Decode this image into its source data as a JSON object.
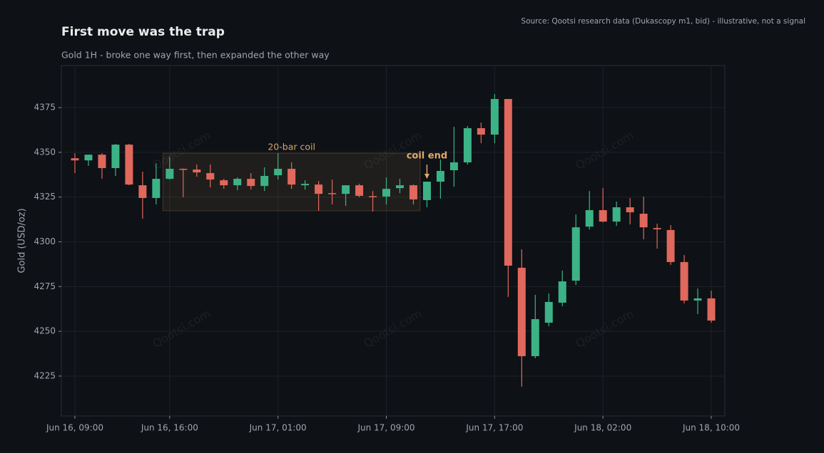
{
  "chart_data": {
    "type": "candlestick",
    "title": "First move was the trap",
    "subtitle": "Gold 1H - broke one way first, then expanded the other way",
    "source": "Source: Qootsi research data (Dukascopy m1, bid) - illustrative, not a signal",
    "watermark": "Qootsi.com",
    "y_label": "Gold (USD/oz)",
    "categories": [
      "Jun 16, 09:00",
      null,
      null,
      null,
      null,
      null,
      null,
      "Jun 16, 16:00",
      null,
      null,
      null,
      null,
      null,
      null,
      null,
      "Jun 17, 01:00",
      null,
      null,
      null,
      null,
      null,
      null,
      null,
      "Jun 17, 09:00",
      null,
      null,
      null,
      null,
      null,
      null,
      null,
      "Jun 17, 17:00",
      null,
      null,
      null,
      null,
      null,
      null,
      null,
      "Jun 18, 02:00",
      null,
      null,
      null,
      null,
      null,
      null,
      null,
      "Jun 18, 10:00"
    ],
    "open": [
      4346.7,
      4345.5,
      4348.7,
      4341.2,
      4354.3,
      4331.6,
      4324.5,
      4335.2,
      4340.8,
      4340.4,
      4338.4,
      4334.4,
      4331.6,
      4335.2,
      4331.2,
      4337.2,
      4340.8,
      4331.6,
      4332.0,
      4327.2,
      4326.8,
      4331.6,
      4325.5,
      4325.3,
      4330.0,
      4331.6,
      4323.3,
      4333.6,
      4340.0,
      4344.4,
      4363.5,
      4359.9,
      4379.8,
      4285.5,
      4236.1,
      4254.8,
      4266.0,
      4278.3,
      4308.5,
      4317.7,
      4311.3,
      4319.3,
      4315.7,
      4307.7,
      4306.6,
      4288.7,
      4267.2,
      4268.4
    ],
    "high": [
      4349.5,
      4348.7,
      4349.5,
      4354.7,
      4354.7,
      4339.2,
      4343.9,
      4347.5,
      4341.0,
      4343.2,
      4343.2,
      4335.2,
      4336.0,
      4338.4,
      4341.6,
      4349.5,
      4344.4,
      4334.4,
      4334.0,
      4334.8,
      4331.6,
      4332.4,
      4328.4,
      4336.0,
      4335.2,
      4332.0,
      4333.6,
      4346.0,
      4364.3,
      4364.7,
      4366.6,
      4382.6,
      4379.8,
      4295.8,
      4270.4,
      4271.1,
      4283.9,
      4315.3,
      4328.4,
      4330.0,
      4322.5,
      4324.5,
      4325.3,
      4310.1,
      4309.3,
      4292.6,
      4273.9,
      4272.7
    ],
    "low": [
      4338.4,
      4342.4,
      4335.2,
      4336.8,
      4331.6,
      4312.9,
      4320.9,
      4334.8,
      4324.9,
      4336.4,
      4330.4,
      4329.6,
      4328.8,
      4329.2,
      4328.4,
      4334.8,
      4329.6,
      4329.2,
      4317.3,
      4320.9,
      4320.1,
      4324.9,
      4316.9,
      4320.9,
      4327.2,
      4320.9,
      4319.3,
      4324.1,
      4330.8,
      4343.2,
      4355.1,
      4355.1,
      4269.2,
      4219.0,
      4234.9,
      4252.8,
      4264.0,
      4275.9,
      4306.9,
      4310.9,
      4308.9,
      4309.7,
      4301.4,
      4296.2,
      4287.1,
      4265.6,
      4259.6,
      4254.8
    ],
    "close": [
      4345.5,
      4348.7,
      4341.2,
      4354.3,
      4332.0,
      4324.5,
      4335.2,
      4340.8,
      4340.4,
      4338.8,
      4334.8,
      4331.6,
      4335.2,
      4331.2,
      4336.8,
      4340.8,
      4332.0,
      4332.4,
      4326.8,
      4326.8,
      4331.6,
      4325.7,
      4325.1,
      4329.6,
      4331.6,
      4323.7,
      4333.6,
      4339.6,
      4344.4,
      4363.5,
      4359.9,
      4379.8,
      4286.7,
      4236.1,
      4256.8,
      4266.4,
      4277.9,
      4308.1,
      4317.7,
      4311.3,
      4319.3,
      4316.5,
      4308.1,
      4307.0,
      4288.7,
      4267.2,
      4268.4,
      4256.0
    ],
    "up_color": "#3cb386",
    "down_color": "#e0685c",
    "ylim": [
      4202.7,
      4398.5
    ],
    "yticks": [
      4225,
      4250,
      4275,
      4300,
      4325,
      4350,
      4375
    ],
    "grid": true,
    "annotations": [
      {
        "text": "20-bar coil",
        "x_start": 7,
        "x_end": 25,
        "y_low": 4317.3,
        "y_high": 4349.5,
        "color": "#d6a66a"
      },
      {
        "text": "coil end",
        "x": 26,
        "y": 4335.2,
        "color": "#e0aa6a"
      }
    ]
  }
}
